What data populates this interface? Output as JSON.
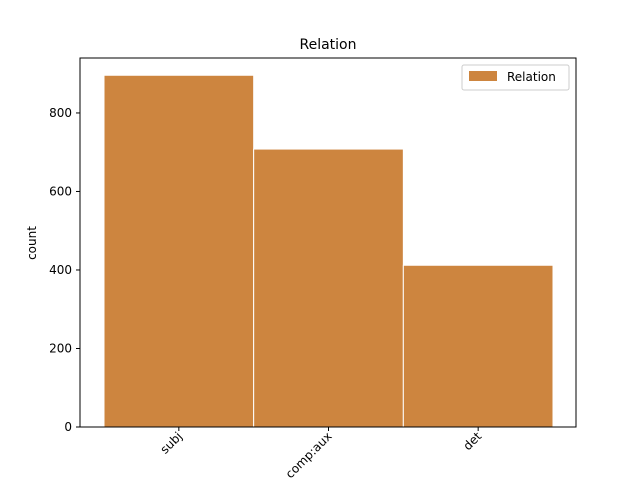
{
  "chart_data": {
    "type": "bar",
    "title": "Relation",
    "xlabel": "",
    "ylabel": "count",
    "categories": [
      "subj",
      "comp:aux",
      "det"
    ],
    "series": [
      {
        "name": "Relation",
        "values": [
          896,
          708,
          412
        ],
        "color": "#cd853f"
      }
    ],
    "ylim": [
      0,
      940
    ],
    "yticks": [
      0,
      200,
      400,
      600,
      800
    ],
    "xtick_rotation_deg": 45,
    "legend_position": "top-right",
    "grid": false
  }
}
